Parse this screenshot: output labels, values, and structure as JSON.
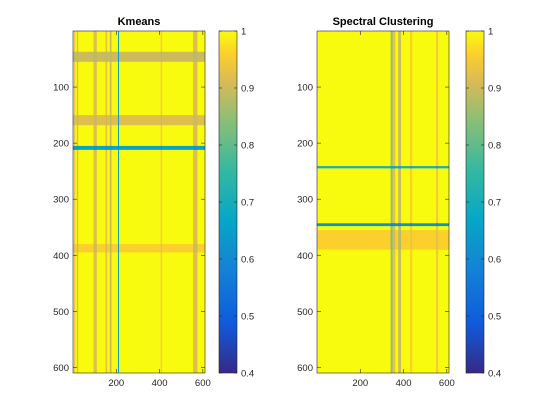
{
  "chart_data": [
    {
      "type": "heatmap",
      "title": "Kmeans",
      "xlabel": "",
      "ylabel": "",
      "xlim": [
        0,
        610
      ],
      "ylim": [
        610,
        0
      ],
      "xticks": [
        200,
        400,
        600
      ],
      "yticks": [
        100,
        200,
        300,
        400,
        500,
        600
      ],
      "colorbar": {
        "range": [
          0.4,
          1
        ],
        "ticks": [
          "0.4",
          "0.5",
          "0.6",
          "0.7",
          "0.8",
          "0.9",
          "1"
        ],
        "colormap": "parula"
      },
      "base_value": 1.0,
      "vertical_bands": [
        {
          "from": 5,
          "to": 10,
          "value": 0.93
        },
        {
          "from": 18,
          "to": 24,
          "value": 0.91
        },
        {
          "from": 95,
          "to": 110,
          "value": 0.92
        },
        {
          "from": 150,
          "to": 158,
          "value": 0.93
        },
        {
          "from": 170,
          "to": 178,
          "value": 0.9
        },
        {
          "from": 208,
          "to": 212,
          "value": 0.66
        },
        {
          "from": 405,
          "to": 412,
          "value": 0.95
        },
        {
          "from": 555,
          "to": 575,
          "value": 0.92
        }
      ],
      "horizontal_bands": [
        {
          "from": 37,
          "to": 55,
          "value": 0.9
        },
        {
          "from": 150,
          "to": 168,
          "value": 0.92
        },
        {
          "from": 205,
          "to": 212,
          "value": 0.66
        },
        {
          "from": 380,
          "to": 395,
          "value": 0.96
        }
      ]
    },
    {
      "type": "heatmap",
      "title": "Spectral Clustering",
      "xlabel": "",
      "ylabel": "",
      "xlim": [
        0,
        610
      ],
      "ylim": [
        610,
        0
      ],
      "xticks": [
        200,
        400,
        600
      ],
      "yticks": [
        100,
        200,
        300,
        400,
        500,
        600
      ],
      "colorbar": {
        "range": [
          0.4,
          1
        ],
        "ticks": [
          "0.4",
          "0.5",
          "0.6",
          "0.7",
          "0.8",
          "0.9",
          "1"
        ],
        "colormap": "parula"
      },
      "base_value": 1.0,
      "vertical_bands": [
        {
          "from": 340,
          "to": 350,
          "value": 0.85
        },
        {
          "from": 350,
          "to": 362,
          "value": 0.93
        },
        {
          "from": 375,
          "to": 388,
          "value": 0.9
        },
        {
          "from": 430,
          "to": 440,
          "value": 0.96
        },
        {
          "from": 550,
          "to": 560,
          "value": 0.95
        }
      ],
      "horizontal_bands": [
        {
          "from": 241,
          "to": 245,
          "value": 0.7
        },
        {
          "from": 343,
          "to": 348,
          "value": 0.62
        },
        {
          "from": 355,
          "to": 390,
          "value": 0.96
        }
      ]
    }
  ]
}
